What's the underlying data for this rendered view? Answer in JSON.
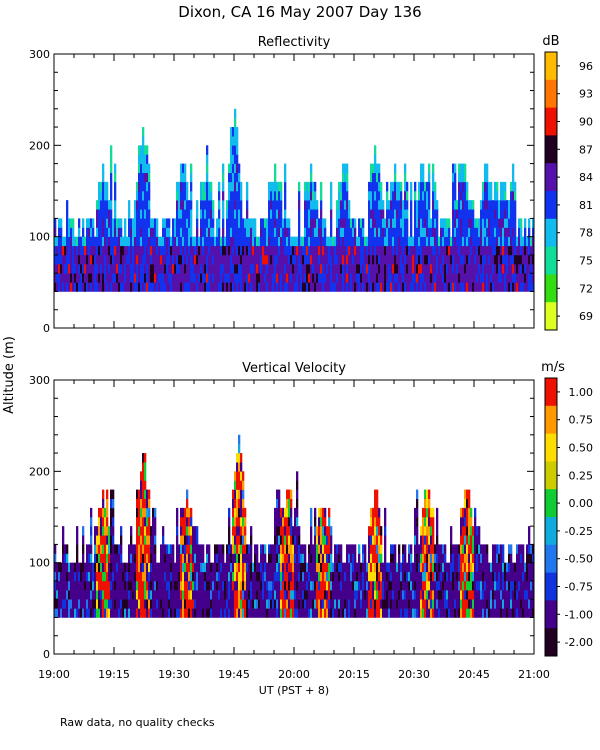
{
  "title": "Dixon, CA 16 May 2007  Day 136",
  "ylabel": "Altitude (m)",
  "xlabel": "UT  (PST + 8)",
  "footnote": "Raw data, no quality checks",
  "colors": {
    "reflectivity": [
      "#ddff22",
      "#33dd11",
      "#11dd99",
      "#11bbee",
      "#1133ee",
      "#5511aa",
      "#220022",
      "#ee1100",
      "#ff7700",
      "#ffbb00"
    ],
    "velocity": [
      "#220022",
      "#44008a",
      "#1133dd",
      "#2277ee",
      "#11aadd",
      "#11cc33",
      "#cccc00",
      "#ffdd00",
      "#ff9900",
      "#ee1100"
    ]
  },
  "chart_data": [
    {
      "type": "heatmap",
      "title": "Reflectivity",
      "x_ticks": [
        "19:00",
        "19:15",
        "19:30",
        "19:45",
        "20:00",
        "20:15",
        "20:30",
        "20:45",
        "21:00"
      ],
      "ylim": [
        0,
        300
      ],
      "y_ticks": [
        "0",
        "100",
        "200",
        "300"
      ],
      "colorbar": {
        "unit": "dB",
        "labels": [
          "96",
          "93",
          "90",
          "87",
          "84",
          "81",
          "78",
          "75",
          "72",
          "69"
        ]
      },
      "data_bottom_m": 40,
      "typical_top_m": 120,
      "echo_towers": [
        {
          "time": "19:12",
          "top_m": 180
        },
        {
          "time": "19:22",
          "top_m": 220
        },
        {
          "time": "19:32",
          "top_m": 180
        },
        {
          "time": "19:38",
          "top_m": 180
        },
        {
          "time": "19:45",
          "top_m": 240
        },
        {
          "time": "19:55",
          "top_m": 180
        },
        {
          "time": "20:04",
          "top_m": 180
        },
        {
          "time": "20:12",
          "top_m": 180
        },
        {
          "time": "20:20",
          "top_m": 200
        },
        {
          "time": "20:25",
          "top_m": 180
        },
        {
          "time": "20:32",
          "top_m": 180
        },
        {
          "time": "20:42",
          "top_m": 180
        },
        {
          "time": "20:48",
          "top_m": 180
        },
        {
          "time": "20:52",
          "top_m": 160
        }
      ]
    },
    {
      "type": "heatmap",
      "title": "Vertical Velocity",
      "x_ticks": [
        "19:00",
        "19:15",
        "19:30",
        "19:45",
        "20:00",
        "20:15",
        "20:30",
        "20:45",
        "21:00"
      ],
      "ylim": [
        0,
        300
      ],
      "y_ticks": [
        "0",
        "100",
        "200",
        "300"
      ],
      "colorbar": {
        "unit": "m/s",
        "labels": [
          "1.00",
          "0.75",
          "0.50",
          "0.25",
          "0.00",
          "-0.25",
          "-0.50",
          "-0.75",
          "-1.00",
          "-2.00"
        ]
      },
      "data_bottom_m": 40,
      "typical_top_m": 120,
      "updraft_columns": [
        {
          "time": "19:12",
          "top_m": 180
        },
        {
          "time": "19:22",
          "top_m": 220
        },
        {
          "time": "19:33",
          "top_m": 180
        },
        {
          "time": "19:46",
          "top_m": 240
        },
        {
          "time": "19:58",
          "top_m": 180
        },
        {
          "time": "20:07",
          "top_m": 160
        },
        {
          "time": "20:20",
          "top_m": 180
        },
        {
          "time": "20:33",
          "top_m": 180
        },
        {
          "time": "20:43",
          "top_m": 180
        }
      ]
    }
  ]
}
